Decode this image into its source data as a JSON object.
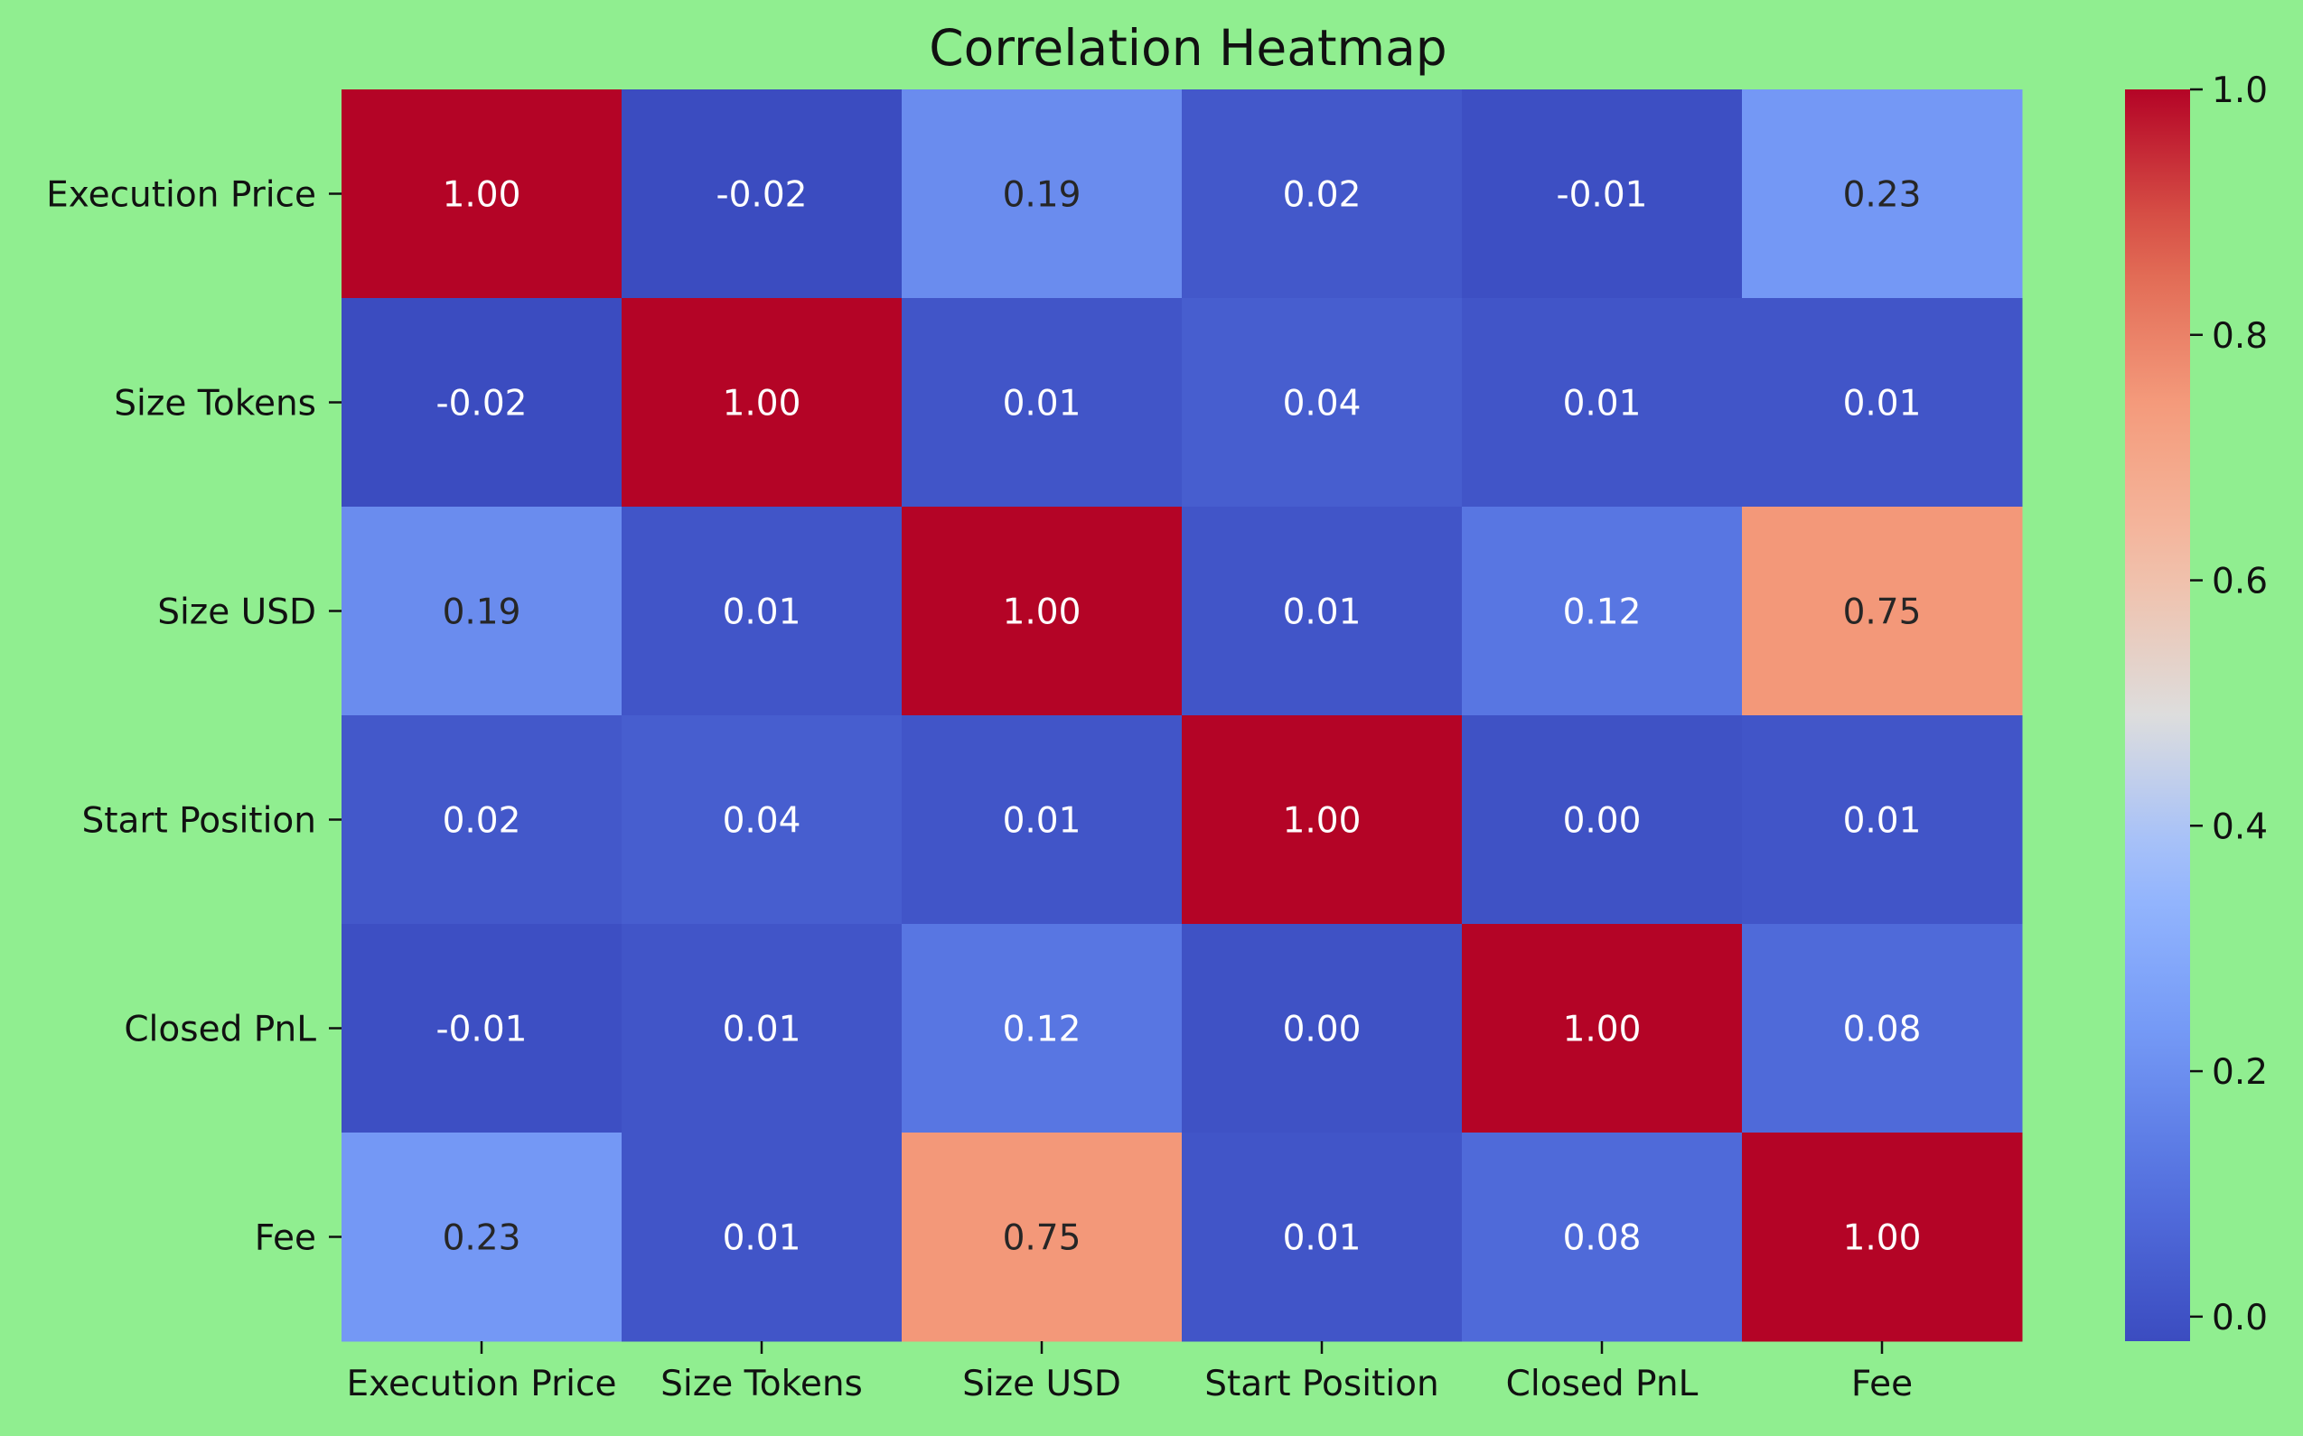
{
  "background_color": "#90ee90",
  "chart_data": {
    "type": "heatmap",
    "title": "Correlation Heatmap",
    "xlabel": "",
    "ylabel": "",
    "colormap": "coolwarm",
    "x_categories": [
      "Execution Price",
      "Size Tokens",
      "Size USD",
      "Start Position",
      "Closed PnL",
      "Fee"
    ],
    "y_categories": [
      "Execution Price",
      "Size Tokens",
      "Size USD",
      "Start Position",
      "Closed PnL",
      "Fee"
    ],
    "values": [
      [
        1.0,
        -0.02,
        0.19,
        0.02,
        -0.01,
        0.23
      ],
      [
        -0.02,
        1.0,
        0.01,
        0.04,
        0.01,
        0.01
      ],
      [
        0.19,
        0.01,
        1.0,
        0.01,
        0.12,
        0.75
      ],
      [
        0.02,
        0.04,
        0.01,
        1.0,
        0.0,
        0.01
      ],
      [
        -0.01,
        0.01,
        0.12,
        0.0,
        1.0,
        0.08
      ],
      [
        0.23,
        0.01,
        0.75,
        0.01,
        0.08,
        1.0
      ]
    ],
    "value_format": "0.00",
    "colorbar": {
      "min": -0.02,
      "max": 1.0,
      "ticks": [
        0.0,
        0.2,
        0.4,
        0.6,
        0.8,
        1.0
      ],
      "tick_labels": [
        "0.0",
        "0.2",
        "0.4",
        "0.6",
        "0.8",
        "1.0"
      ]
    }
  }
}
